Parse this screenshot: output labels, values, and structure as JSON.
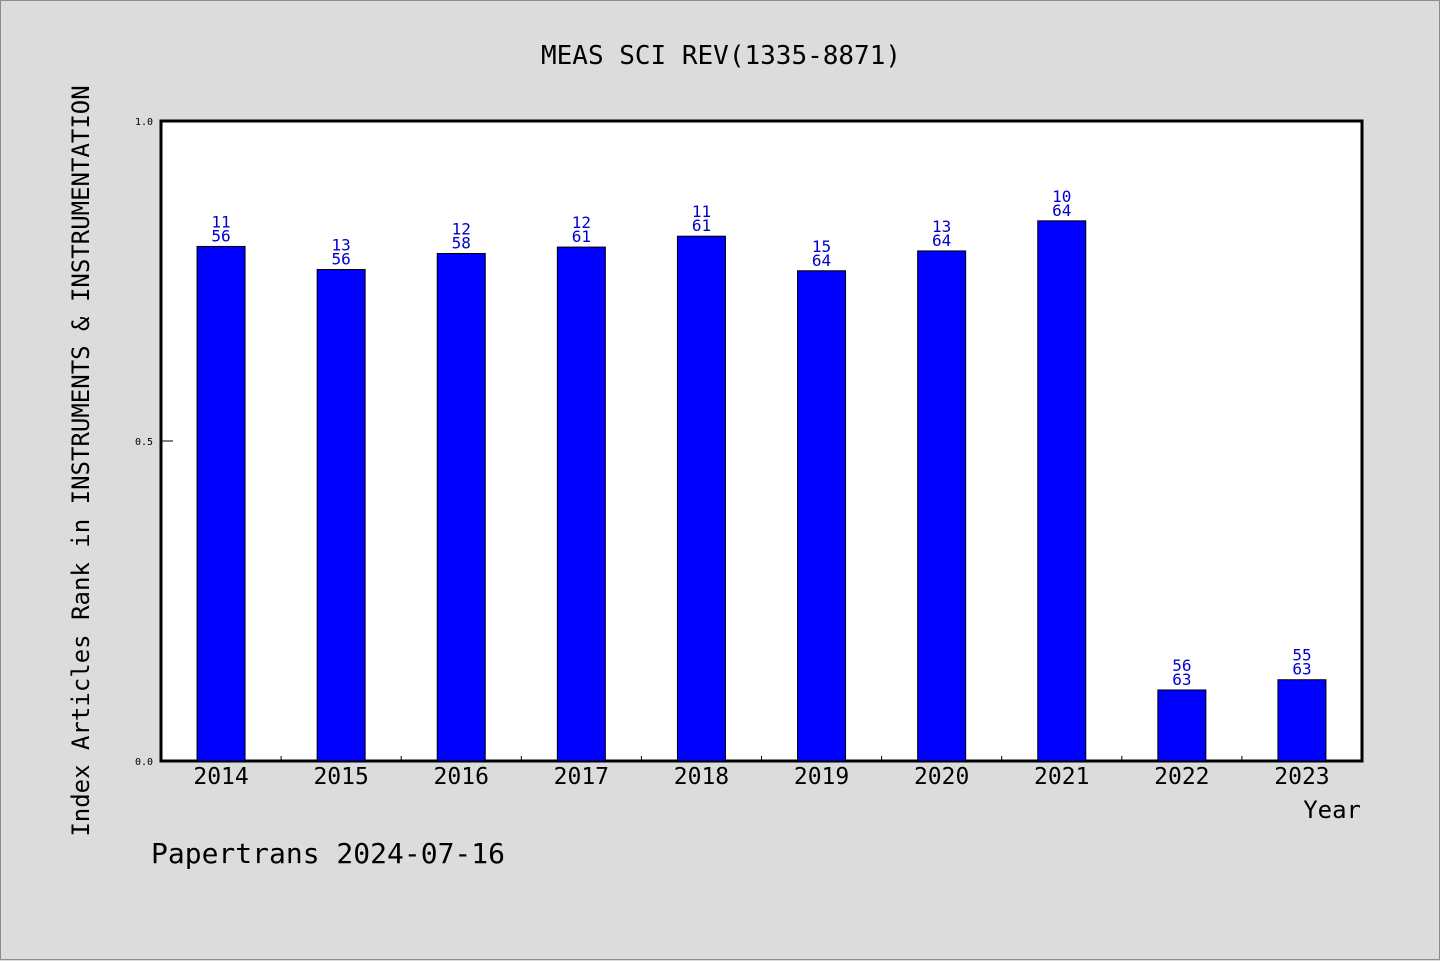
{
  "chart_data": {
    "type": "bar",
    "title": "MEAS SCI REV(1335-8871)",
    "xlabel": "Year",
    "ylabel": "Index Articles Rank in INSTRUMENTS & INSTRUMENTATION",
    "ylim": [
      0,
      1.0
    ],
    "yticks": [
      "0.0",
      "0.5",
      "1.0"
    ],
    "categories": [
      "2014",
      "2015",
      "2016",
      "2017",
      "2018",
      "2019",
      "2020",
      "2021",
      "2022",
      "2023"
    ],
    "values": [
      0.804,
      0.768,
      0.793,
      0.803,
      0.82,
      0.766,
      0.797,
      0.844,
      0.111,
      0.127
    ],
    "labels": [
      {
        "rank": "11",
        "total": "56"
      },
      {
        "rank": "13",
        "total": "56"
      },
      {
        "rank": "12",
        "total": "58"
      },
      {
        "rank": "12",
        "total": "61"
      },
      {
        "rank": "11",
        "total": "61"
      },
      {
        "rank": "15",
        "total": "64"
      },
      {
        "rank": "13",
        "total": "64"
      },
      {
        "rank": "10",
        "total": "64"
      },
      {
        "rank": "56",
        "total": "63"
      },
      {
        "rank": "55",
        "total": "63"
      }
    ],
    "grid": false,
    "colors": {
      "bar": "#0000ff",
      "label": "#0000cc",
      "background": "#dcdcdc",
      "plot": "#ffffff"
    }
  },
  "footer": "Papertrans 2024-07-16"
}
